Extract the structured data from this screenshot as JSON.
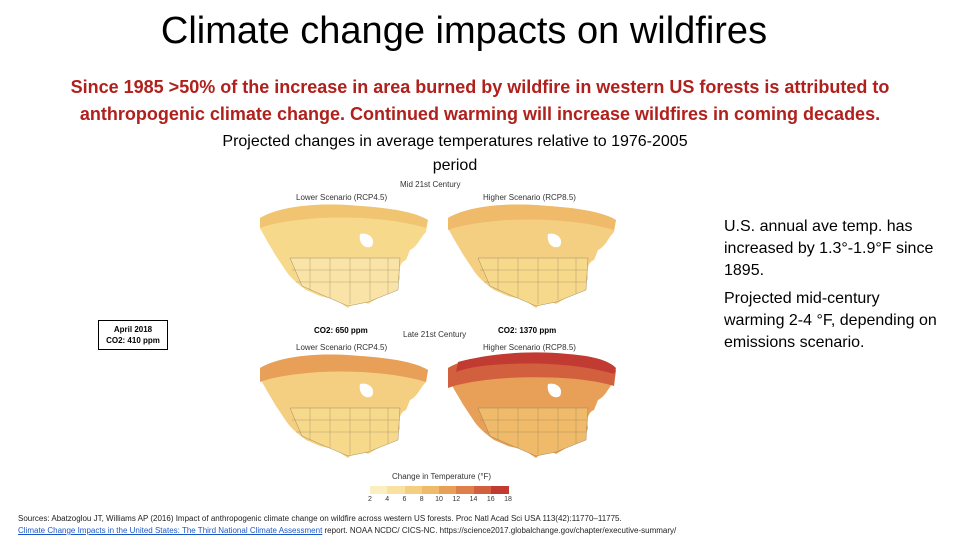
{
  "title": "Climate change impacts on wildfires",
  "subtitle": "Since 1985 >50% of the increase in area burned by wildfire in western US forests is attributed to anthropogenic climate change. Continued warming will increase wildfires in coming decades.",
  "projection_title": "Projected changes in average temperatures relative to 1976-2005 period",
  "figure": {
    "mid_century": "Mid 21st Century",
    "late_century": "Late 21st Century",
    "lower_scenario": "Lower Scenario (RCP4.5)",
    "higher_scenario": "Higher Scenario (RCP8.5)",
    "co2_lower": "CO2: 650 ppm",
    "co2_higher": "CO2: 1370 ppm",
    "legend_title": "Change in Temperature (°F)",
    "legend_ticks": [
      "2",
      "4",
      "6",
      "8",
      "10",
      "12",
      "14",
      "16",
      "18"
    ],
    "legend_colors": [
      "#fbeec0",
      "#f8e1a1",
      "#f4cf82",
      "#efba69",
      "#e89f57",
      "#df804a",
      "#d2603f",
      "#c23b33"
    ]
  },
  "april_box": {
    "line1": "April 2018",
    "line2": "CO2: 410 ppm"
  },
  "right_panel": {
    "point1": "U.S. annual ave temp. has increased by 1.3°-1.9°F since 1895.",
    "point2": "Projected mid-century warming 2-4 °F, depending on emissions scenario."
  },
  "sources": {
    "line1": "Sources: Abatzoglou JT, Williams AP (2016) Impact of anthropogenic climate change on wildfire across western US forests. Proc Natl Acad Sci USA 113(42):11770–11775.",
    "link_text": "Climate Change Impacts in the United States: The Third National Climate Assessment",
    "line2_rest": " report. NOAA NCDC/ CICS-NC.  https://science2017.globalchange.gov/chapter/executive-summary/"
  }
}
